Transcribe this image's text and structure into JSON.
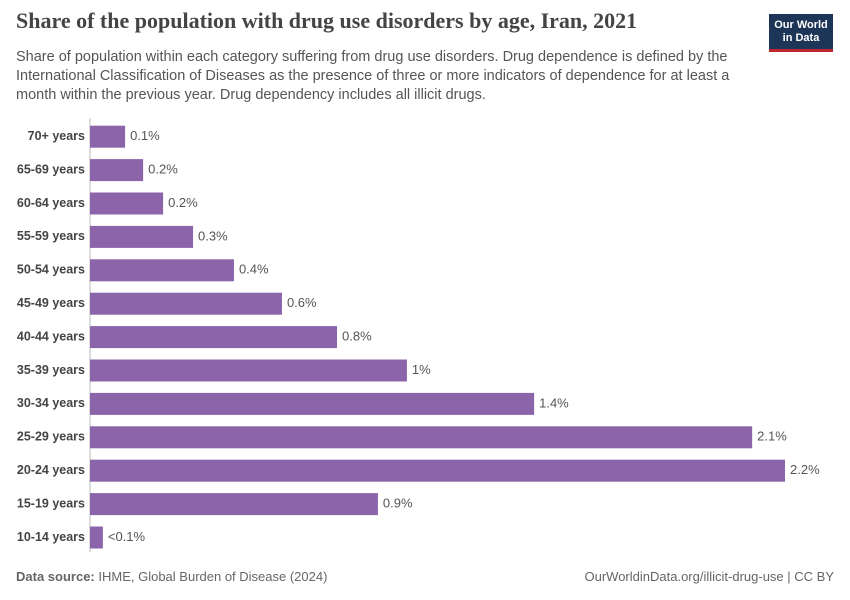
{
  "logo": [
    "Our World",
    "in Data"
  ],
  "chart_data": {
    "type": "bar",
    "orientation": "horizontal",
    "title": "Share of the population with drug use disorders by age, Iran, 2021",
    "subtitle": "Share of population within each category suffering from drug use disorders. Drug dependence is defined by the International Classification of Diseases as the presence of three or more indicators of dependence for at least a month within the previous year. Drug dependency includes all illicit drugs.",
    "categories": [
      "70+ years",
      "65-69 years",
      "60-64 years",
      "55-59 years",
      "50-54 years",
      "45-49 years",
      "40-44 years",
      "35-39 years",
      "30-34 years",
      "25-29 years",
      "20-24 years",
      "15-19 years",
      "10-14 years"
    ],
    "values": [
      0.109,
      0.165,
      0.227,
      0.32,
      0.447,
      0.596,
      0.767,
      0.984,
      1.379,
      2.056,
      2.158,
      0.894,
      0.04
    ],
    "value_labels": [
      "0.1%",
      "0.2%",
      "0.2%",
      "0.3%",
      "0.4%",
      "0.6%",
      "0.8%",
      "1%",
      "1.4%",
      "2.1%",
      "2.2%",
      "0.9%",
      "<0.1%"
    ],
    "color": "#8b64aa",
    "source_label": "Data source:",
    "source": "IHME, Global Burden of Disease (2024)",
    "url": "OurWorldinData.org/illicit-drug-use | CC BY"
  }
}
